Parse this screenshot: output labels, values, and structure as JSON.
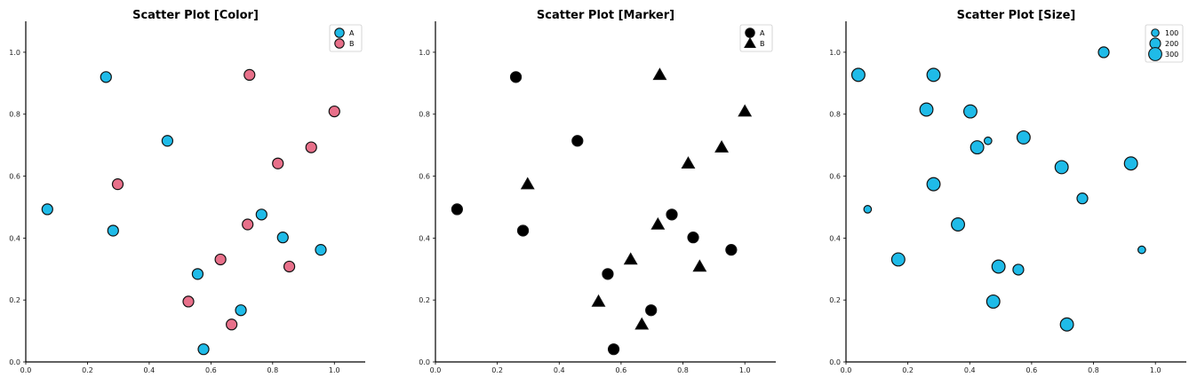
{
  "colors": {
    "A": "#1fbbe8",
    "B": "#e8708a",
    "black": "#000000",
    "edge": "#111111"
  },
  "chart_data": [
    {
      "type": "scatter",
      "variant": "color",
      "title": "Scatter Plot [Color]",
      "xlim": [
        0,
        1.1
      ],
      "ylim": [
        0,
        1.1
      ],
      "xticks": [
        "0.0",
        "0.2",
        "0.4",
        "0.6",
        "0.8",
        "1.0"
      ],
      "yticks": [
        "0.0",
        "0.2",
        "0.4",
        "0.6",
        "0.8",
        "1.0"
      ],
      "legend": {
        "placement": "top-right",
        "entries": [
          {
            "label": "A",
            "color": "#1fbbe8",
            "marker": "circle"
          },
          {
            "label": "B",
            "color": "#e8708a",
            "marker": "circle"
          }
        ]
      },
      "series": [
        {
          "name": "A",
          "color": "#1fbbe8",
          "marker": "circle",
          "size": 200,
          "points": [
            [
              0.07,
              0.493
            ],
            [
              0.26,
              0.92
            ],
            [
              0.283,
              0.424
            ],
            [
              0.459,
              0.714
            ],
            [
              0.557,
              0.284
            ],
            [
              0.576,
              0.041
            ],
            [
              0.697,
              0.167
            ],
            [
              0.764,
              0.476
            ],
            [
              0.833,
              0.402
            ],
            [
              0.956,
              0.362
            ]
          ]
        },
        {
          "name": "B",
          "color": "#e8708a",
          "marker": "circle",
          "size": 200,
          "points": [
            [
              0.298,
              0.574
            ],
            [
              0.527,
              0.195
            ],
            [
              0.631,
              0.331
            ],
            [
              0.667,
              0.121
            ],
            [
              0.719,
              0.444
            ],
            [
              0.725,
              0.927
            ],
            [
              0.817,
              0.641
            ],
            [
              0.854,
              0.308
            ],
            [
              0.925,
              0.693
            ],
            [
              1.0,
              0.809
            ]
          ]
        }
      ]
    },
    {
      "type": "scatter",
      "variant": "marker",
      "title": "Scatter Plot [Marker]",
      "xlim": [
        0,
        1.1
      ],
      "ylim": [
        0,
        1.1
      ],
      "xticks": [
        "0.0",
        "0.2",
        "0.4",
        "0.6",
        "0.8",
        "1.0"
      ],
      "yticks": [
        "0.0",
        "0.2",
        "0.4",
        "0.6",
        "0.8",
        "1.0"
      ],
      "legend": {
        "placement": "top-right",
        "entries": [
          {
            "label": "A",
            "color": "#000000",
            "marker": "circle"
          },
          {
            "label": "B",
            "color": "#000000",
            "marker": "triangle"
          }
        ]
      },
      "series": [
        {
          "name": "A",
          "color": "#000000",
          "marker": "circle",
          "size": 200,
          "points": [
            [
              0.07,
              0.493
            ],
            [
              0.26,
              0.92
            ],
            [
              0.283,
              0.424
            ],
            [
              0.459,
              0.714
            ],
            [
              0.557,
              0.284
            ],
            [
              0.576,
              0.041
            ],
            [
              0.697,
              0.167
            ],
            [
              0.764,
              0.476
            ],
            [
              0.833,
              0.402
            ],
            [
              0.956,
              0.362
            ]
          ]
        },
        {
          "name": "B",
          "color": "#000000",
          "marker": "triangle",
          "size": 200,
          "points": [
            [
              0.298,
              0.574
            ],
            [
              0.527,
              0.195
            ],
            [
              0.631,
              0.331
            ],
            [
              0.667,
              0.121
            ],
            [
              0.719,
              0.444
            ],
            [
              0.725,
              0.927
            ],
            [
              0.817,
              0.641
            ],
            [
              0.854,
              0.308
            ],
            [
              0.925,
              0.693
            ],
            [
              1.0,
              0.809
            ]
          ]
        }
      ]
    },
    {
      "type": "scatter",
      "variant": "size",
      "title": "Scatter Plot [Size]",
      "xlim": [
        0,
        1.1
      ],
      "ylim": [
        0,
        1.1
      ],
      "xticks": [
        "0.0",
        "0.2",
        "0.4",
        "0.6",
        "0.8",
        "1.0"
      ],
      "yticks": [
        "0.0",
        "0.2",
        "0.4",
        "0.6",
        "0.8",
        "1.0"
      ],
      "legend": {
        "placement": "top-right",
        "entries": [
          {
            "label": "100",
            "size": 100
          },
          {
            "label": "200",
            "size": 200
          },
          {
            "label": "300",
            "size": 300
          }
        ]
      },
      "series": [
        {
          "color": "#1fbbe8",
          "marker": "circle",
          "points": [
            [
              0.04,
              0.927,
              300
            ],
            [
              0.07,
              0.493,
              100
            ],
            [
              0.169,
              0.331,
              300
            ],
            [
              0.26,
              0.815,
              300
            ],
            [
              0.283,
              0.574,
              300
            ],
            [
              0.283,
              0.927,
              300
            ],
            [
              0.362,
              0.444,
              300
            ],
            [
              0.402,
              0.809,
              300
            ],
            [
              0.424,
              0.693,
              300
            ],
            [
              0.459,
              0.714,
              100
            ],
            [
              0.476,
              0.195,
              300
            ],
            [
              0.493,
              0.308,
              300
            ],
            [
              0.557,
              0.298,
              200
            ],
            [
              0.574,
              0.725,
              300
            ],
            [
              0.697,
              0.629,
              300
            ],
            [
              0.714,
              0.121,
              300
            ],
            [
              0.764,
              0.528,
              200
            ],
            [
              0.833,
              1.0,
              200
            ],
            [
              0.921,
              0.641,
              300
            ],
            [
              0.956,
              0.362,
              100
            ]
          ]
        }
      ]
    }
  ]
}
